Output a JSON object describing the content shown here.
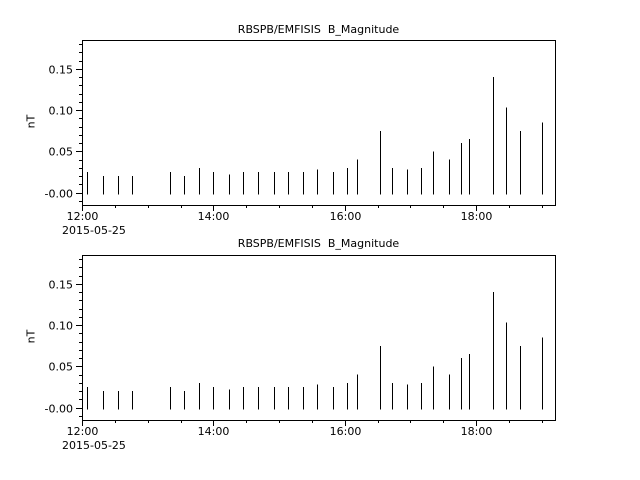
{
  "window": {
    "background": "#ffffff",
    "foreground": "#000000"
  },
  "chart_data": {
    "type": "bar",
    "title": "RBSPB/EMFISIS  B_Magnitude",
    "ylabel": "nT",
    "xlabel": "",
    "x_date_label": "2015-05-25",
    "x_unit": "minutes-of-day",
    "panels": 2,
    "grid": false,
    "legend": null,
    "xlim": [
      720,
      1152
    ],
    "ylim": [
      -0.015,
      0.185
    ],
    "baseline": -0.002,
    "x_major_ticks": [
      {
        "t": 720,
        "label": "12:00"
      },
      {
        "t": 840,
        "label": "14:00"
      },
      {
        "t": 960,
        "label": "16:00"
      },
      {
        "t": 1080,
        "label": "18:00"
      }
    ],
    "x_minor_step": 30,
    "y_major_ticks": [
      {
        "v": 0.0,
        "label": "-0.00"
      },
      {
        "v": 0.05,
        "label": "0.05"
      },
      {
        "v": 0.1,
        "label": "0.10"
      },
      {
        "v": 0.15,
        "label": "0.15"
      }
    ],
    "y_minor_step": 0.01,
    "x": [
      725,
      739,
      753,
      766,
      800,
      813,
      827,
      840,
      854,
      867,
      881,
      895,
      908,
      922,
      935,
      949,
      962,
      971,
      992,
      1003,
      1017,
      1030,
      1041,
      1055,
      1066,
      1073,
      1095,
      1107,
      1120,
      1140
    ],
    "values": [
      0.025,
      0.02,
      0.02,
      0.02,
      0.025,
      0.02,
      0.03,
      0.025,
      0.022,
      0.025,
      0.025,
      0.025,
      0.025,
      0.025,
      0.028,
      0.025,
      0.03,
      0.04,
      0.075,
      0.03,
      0.028,
      0.03,
      0.05,
      0.04,
      0.06,
      0.065,
      0.14,
      0.103,
      0.075,
      0.085
    ],
    "colors": {
      "line": "#000000",
      "background": "#ffffff"
    }
  }
}
